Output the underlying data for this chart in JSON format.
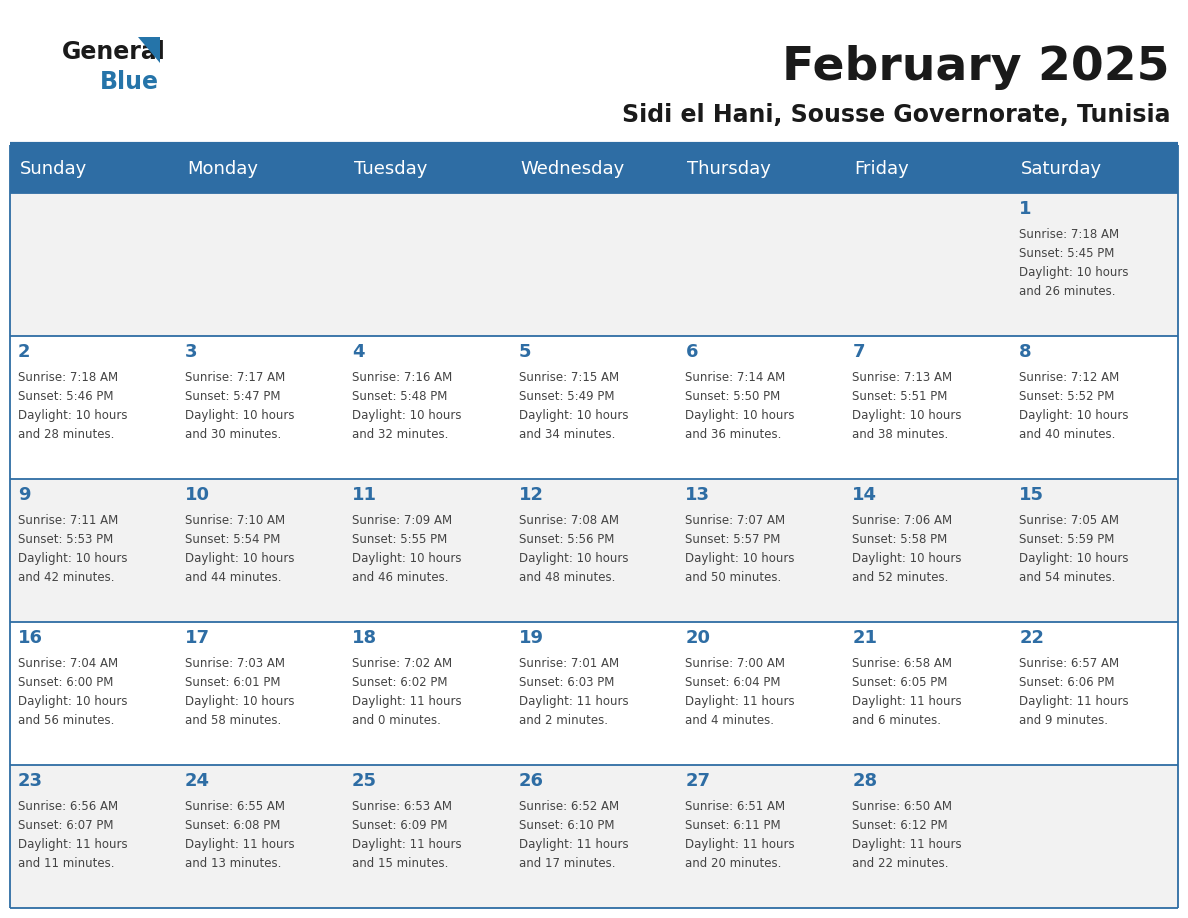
{
  "title": "February 2025",
  "subtitle": "Sidi el Hani, Sousse Governorate, Tunisia",
  "header_color": "#2E6DA4",
  "header_text_color": "#FFFFFF",
  "line_color": "#2E6DA4",
  "day_number_color": "#2E6DA4",
  "text_color": "#444444",
  "logo_general_color": "#1A1A1A",
  "logo_blue_color": "#2574A9",
  "days_of_week": [
    "Sunday",
    "Monday",
    "Tuesday",
    "Wednesday",
    "Thursday",
    "Friday",
    "Saturday"
  ],
  "weeks": [
    [
      {
        "day": null,
        "info": null
      },
      {
        "day": null,
        "info": null
      },
      {
        "day": null,
        "info": null
      },
      {
        "day": null,
        "info": null
      },
      {
        "day": null,
        "info": null
      },
      {
        "day": null,
        "info": null
      },
      {
        "day": "1",
        "info": "Sunrise: 7:18 AM\nSunset: 5:45 PM\nDaylight: 10 hours\nand 26 minutes."
      }
    ],
    [
      {
        "day": "2",
        "info": "Sunrise: 7:18 AM\nSunset: 5:46 PM\nDaylight: 10 hours\nand 28 minutes."
      },
      {
        "day": "3",
        "info": "Sunrise: 7:17 AM\nSunset: 5:47 PM\nDaylight: 10 hours\nand 30 minutes."
      },
      {
        "day": "4",
        "info": "Sunrise: 7:16 AM\nSunset: 5:48 PM\nDaylight: 10 hours\nand 32 minutes."
      },
      {
        "day": "5",
        "info": "Sunrise: 7:15 AM\nSunset: 5:49 PM\nDaylight: 10 hours\nand 34 minutes."
      },
      {
        "day": "6",
        "info": "Sunrise: 7:14 AM\nSunset: 5:50 PM\nDaylight: 10 hours\nand 36 minutes."
      },
      {
        "day": "7",
        "info": "Sunrise: 7:13 AM\nSunset: 5:51 PM\nDaylight: 10 hours\nand 38 minutes."
      },
      {
        "day": "8",
        "info": "Sunrise: 7:12 AM\nSunset: 5:52 PM\nDaylight: 10 hours\nand 40 minutes."
      }
    ],
    [
      {
        "day": "9",
        "info": "Sunrise: 7:11 AM\nSunset: 5:53 PM\nDaylight: 10 hours\nand 42 minutes."
      },
      {
        "day": "10",
        "info": "Sunrise: 7:10 AM\nSunset: 5:54 PM\nDaylight: 10 hours\nand 44 minutes."
      },
      {
        "day": "11",
        "info": "Sunrise: 7:09 AM\nSunset: 5:55 PM\nDaylight: 10 hours\nand 46 minutes."
      },
      {
        "day": "12",
        "info": "Sunrise: 7:08 AM\nSunset: 5:56 PM\nDaylight: 10 hours\nand 48 minutes."
      },
      {
        "day": "13",
        "info": "Sunrise: 7:07 AM\nSunset: 5:57 PM\nDaylight: 10 hours\nand 50 minutes."
      },
      {
        "day": "14",
        "info": "Sunrise: 7:06 AM\nSunset: 5:58 PM\nDaylight: 10 hours\nand 52 minutes."
      },
      {
        "day": "15",
        "info": "Sunrise: 7:05 AM\nSunset: 5:59 PM\nDaylight: 10 hours\nand 54 minutes."
      }
    ],
    [
      {
        "day": "16",
        "info": "Sunrise: 7:04 AM\nSunset: 6:00 PM\nDaylight: 10 hours\nand 56 minutes."
      },
      {
        "day": "17",
        "info": "Sunrise: 7:03 AM\nSunset: 6:01 PM\nDaylight: 10 hours\nand 58 minutes."
      },
      {
        "day": "18",
        "info": "Sunrise: 7:02 AM\nSunset: 6:02 PM\nDaylight: 11 hours\nand 0 minutes."
      },
      {
        "day": "19",
        "info": "Sunrise: 7:01 AM\nSunset: 6:03 PM\nDaylight: 11 hours\nand 2 minutes."
      },
      {
        "day": "20",
        "info": "Sunrise: 7:00 AM\nSunset: 6:04 PM\nDaylight: 11 hours\nand 4 minutes."
      },
      {
        "day": "21",
        "info": "Sunrise: 6:58 AM\nSunset: 6:05 PM\nDaylight: 11 hours\nand 6 minutes."
      },
      {
        "day": "22",
        "info": "Sunrise: 6:57 AM\nSunset: 6:06 PM\nDaylight: 11 hours\nand 9 minutes."
      }
    ],
    [
      {
        "day": "23",
        "info": "Sunrise: 6:56 AM\nSunset: 6:07 PM\nDaylight: 11 hours\nand 11 minutes."
      },
      {
        "day": "24",
        "info": "Sunrise: 6:55 AM\nSunset: 6:08 PM\nDaylight: 11 hours\nand 13 minutes."
      },
      {
        "day": "25",
        "info": "Sunrise: 6:53 AM\nSunset: 6:09 PM\nDaylight: 11 hours\nand 15 minutes."
      },
      {
        "day": "26",
        "info": "Sunrise: 6:52 AM\nSunset: 6:10 PM\nDaylight: 11 hours\nand 17 minutes."
      },
      {
        "day": "27",
        "info": "Sunrise: 6:51 AM\nSunset: 6:11 PM\nDaylight: 11 hours\nand 20 minutes."
      },
      {
        "day": "28",
        "info": "Sunrise: 6:50 AM\nSunset: 6:12 PM\nDaylight: 11 hours\nand 22 minutes."
      },
      {
        "day": null,
        "info": null
      }
    ]
  ],
  "fig_width": 11.88,
  "fig_height": 9.18,
  "dpi": 100,
  "title_fontsize": 34,
  "subtitle_fontsize": 17,
  "day_header_fontsize": 13,
  "day_num_fontsize": 13,
  "cell_text_fontsize": 8.5
}
